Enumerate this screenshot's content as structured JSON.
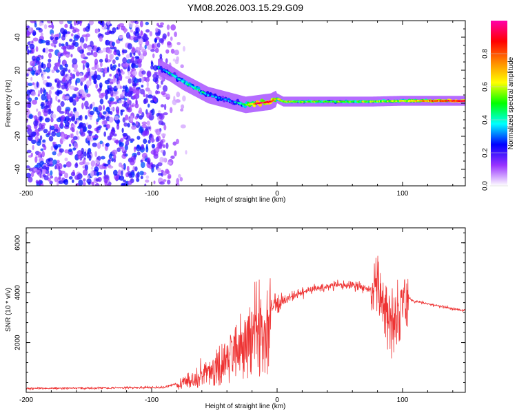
{
  "figure": {
    "title": "YM08.2026.003.15.29.G09"
  },
  "chart_data": [
    {
      "type": "heatmap",
      "title": "YM08.2026.003.15.29.G09",
      "xlabel": "Height of straight line (km)",
      "ylabel": "Frequency (Hz)",
      "xlim": [
        -200,
        150
      ],
      "ylim": [
        -50,
        50
      ],
      "xticks": [
        -200,
        -100,
        0,
        100
      ],
      "yticks": [
        -40,
        -20,
        0,
        20,
        40
      ],
      "xtick_labels": [
        "-200",
        "-100",
        "0",
        "100"
      ],
      "ytick_labels": [
        "-40",
        "-20",
        "0",
        "20",
        "40"
      ],
      "noise_region_km": [
        -200,
        -90
      ],
      "ridge": {
        "x": [
          -95,
          -85,
          -75,
          -65,
          -55,
          -45,
          -35,
          -25,
          -15,
          -5,
          0,
          5,
          25,
          50,
          75,
          100,
          150
        ],
        "y": [
          22,
          18,
          13,
          9,
          5,
          3,
          1,
          -1,
          0,
          1,
          3,
          1,
          1,
          1,
          1,
          1.5,
          1.5
        ],
        "amplitude": [
          0.3,
          0.35,
          0.4,
          0.4,
          0.35,
          0.3,
          0.3,
          0.5,
          0.9,
          0.9,
          0.6,
          0.6,
          0.5,
          0.5,
          0.55,
          0.6,
          0.95
        ]
      },
      "colorbar": {
        "label": "Normalized spectral amplitude",
        "range": [
          0,
          1
        ],
        "ticks": [
          0.0,
          0.2,
          0.4,
          0.6,
          0.8
        ],
        "tick_labels": [
          "0.0",
          "0.2",
          "0.4",
          "0.6",
          "0.8"
        ],
        "colors": [
          "#ffffff",
          "#9933ff",
          "#0000ff",
          "#00ffff",
          "#00ff00",
          "#ffff00",
          "#ff8800",
          "#ff0000",
          "#ff00aa"
        ]
      }
    },
    {
      "type": "line",
      "xlabel": "Height of straight line (km)",
      "ylabel": "SNR (10 * v/v)",
      "xlim": [
        -200,
        150
      ],
      "ylim": [
        0,
        6600
      ],
      "xticks": [
        -200,
        -100,
        0,
        100
      ],
      "yticks": [
        2000,
        4000,
        6000
      ],
      "xtick_labels": [
        "-200",
        "-100",
        "0",
        "100"
      ],
      "ytick_labels": [
        "2000",
        "4000",
        "6000"
      ],
      "color": "#ee3333",
      "series": [
        {
          "name": "SNR",
          "x": [
            -200,
            -90,
            -80,
            -70,
            -60,
            -50,
            -40,
            -30,
            -20,
            -10,
            0,
            10,
            20,
            30,
            40,
            50,
            60,
            70,
            80,
            85,
            90,
            95,
            100,
            110,
            120,
            130,
            140,
            150
          ],
          "y": [
            150,
            200,
            350,
            600,
            900,
            1200,
            1600,
            2200,
            2800,
            3300,
            3550,
            3800,
            4000,
            4150,
            4250,
            4300,
            4300,
            4200,
            4000,
            3600,
            3000,
            3200,
            3900,
            3650,
            3550,
            3450,
            3350,
            3300
          ]
        }
      ]
    }
  ]
}
